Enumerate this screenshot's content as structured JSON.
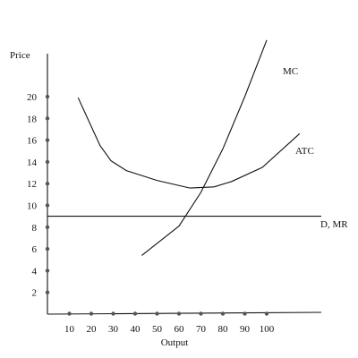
{
  "chart_data": {
    "type": "line",
    "title": "",
    "ylabel": "Price",
    "xlabel": "Output",
    "xlim": [
      0,
      125
    ],
    "ylim": [
      0,
      26
    ],
    "grid": false,
    "x_ticks": [
      "10",
      "20",
      "30",
      "40",
      "50",
      "60",
      "70",
      "80",
      "90",
      "100"
    ],
    "y_ticks": [
      "2",
      "4",
      "6",
      "8",
      "10",
      "12",
      "14",
      "16",
      "18",
      "20"
    ],
    "series": [
      {
        "name": "MC",
        "x": [
          43,
          60,
          70,
          80,
          90,
          100
        ],
        "y": [
          5.4,
          8.1,
          11.2,
          15.2,
          20,
          25.2
        ]
      },
      {
        "name": "ATC",
        "x": [
          14,
          24,
          29,
          36,
          50,
          65,
          76,
          84,
          98,
          115
        ],
        "y": [
          19.9,
          15.5,
          14.1,
          13.2,
          12.3,
          11.6,
          11.7,
          12.2,
          13.5,
          16.6
        ]
      },
      {
        "name": "D, MR",
        "x": [
          0,
          125
        ],
        "y": [
          9,
          9
        ]
      }
    ],
    "colors": {
      "line": "#111111",
      "dot": "#555555"
    }
  }
}
